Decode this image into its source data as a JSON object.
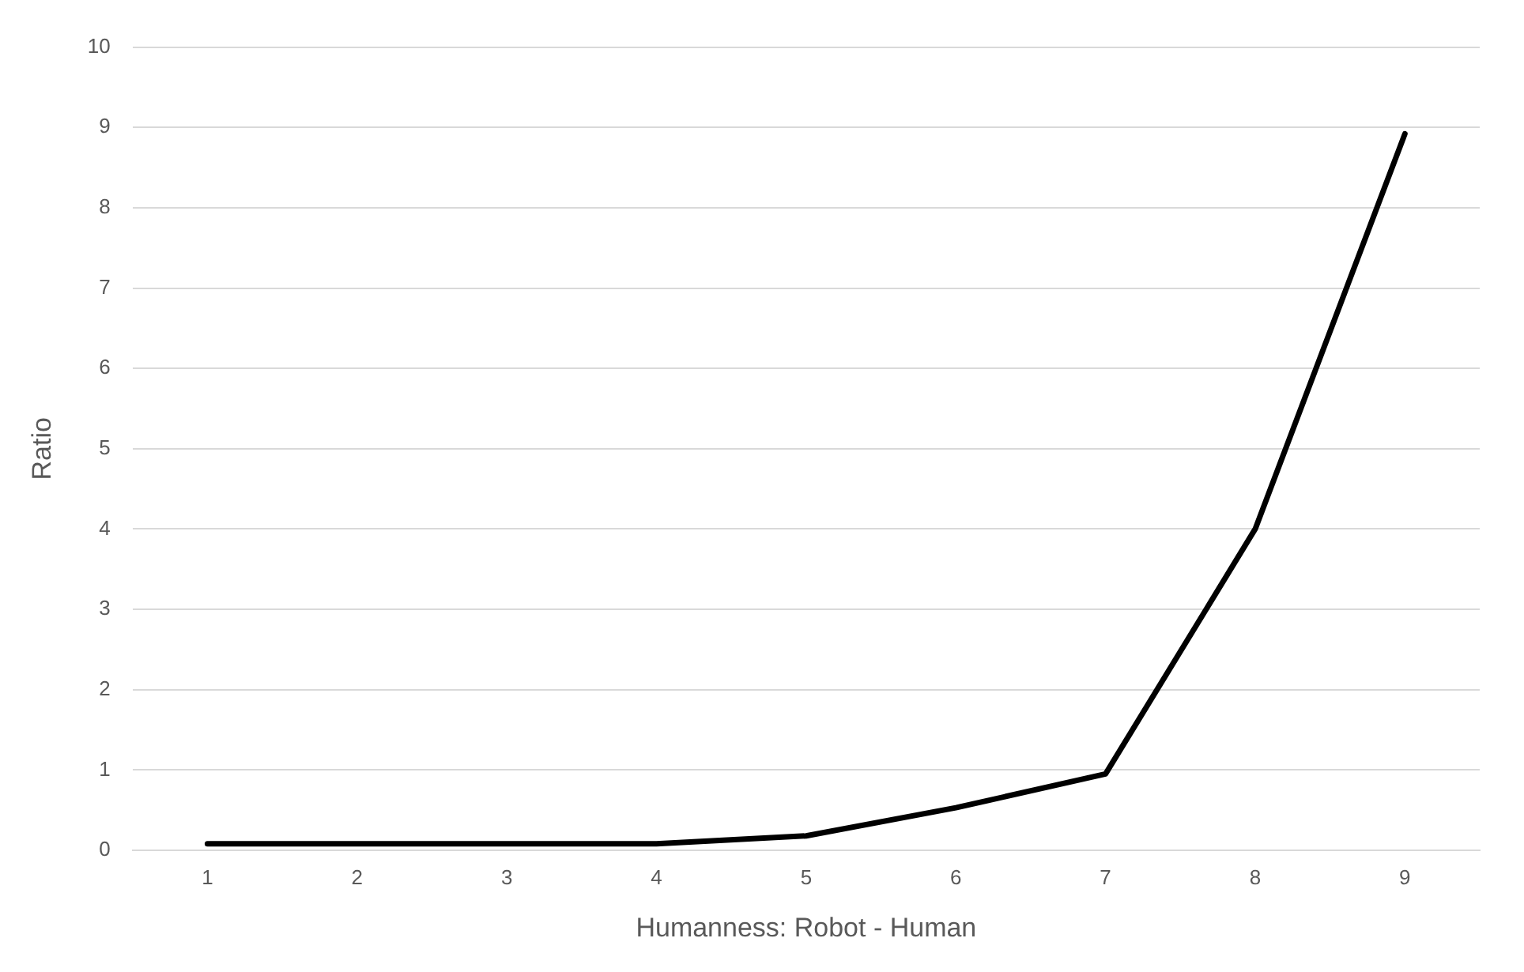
{
  "chart_data": {
    "type": "line",
    "xlabel": "Humanness: Robot - Human",
    "ylabel": "Ratio",
    "categories": [
      "1",
      "2",
      "3",
      "4",
      "5",
      "6",
      "7",
      "8",
      "9"
    ],
    "series": [
      {
        "color": "#000000",
        "values": [
          0.08,
          0.08,
          0.08,
          0.08,
          0.18,
          0.53,
          0.95,
          4.0,
          8.92
        ]
      }
    ],
    "ylim": [
      0,
      10
    ],
    "yticks": [
      0,
      1,
      2,
      3,
      4,
      5,
      6,
      7,
      8,
      9,
      10
    ],
    "grid": "y",
    "legend": false,
    "marker": "none",
    "line_style": "solid"
  }
}
